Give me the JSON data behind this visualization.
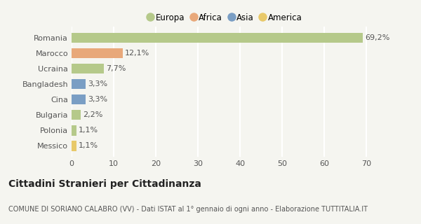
{
  "categories": [
    "Romania",
    "Marocco",
    "Ucraina",
    "Bangladesh",
    "Cina",
    "Bulgaria",
    "Polonia",
    "Messico"
  ],
  "values": [
    69.2,
    12.1,
    7.7,
    3.3,
    3.3,
    2.2,
    1.1,
    1.1
  ],
  "labels": [
    "69,2%",
    "12,1%",
    "7,7%",
    "3,3%",
    "3,3%",
    "2,2%",
    "1,1%",
    "1,1%"
  ],
  "colors": [
    "#b5c98a",
    "#e8a87a",
    "#b5c98a",
    "#7a9ec4",
    "#7a9ec4",
    "#b5c98a",
    "#b5c98a",
    "#e8c96a"
  ],
  "legend_items": [
    {
      "label": "Europa",
      "color": "#b5c98a"
    },
    {
      "label": "Africa",
      "color": "#e8a87a"
    },
    {
      "label": "Asia",
      "color": "#7a9ec4"
    },
    {
      "label": "America",
      "color": "#e8c96a"
    }
  ],
  "xlim": [
    0,
    73
  ],
  "xticks": [
    0,
    10,
    20,
    30,
    40,
    50,
    60,
    70
  ],
  "title": "Cittadini Stranieri per Cittadinanza",
  "subtitle": "COMUNE DI SORIANO CALABRO (VV) - Dati ISTAT al 1° gennaio di ogni anno - Elaborazione TUTTITALIA.IT",
  "background_color": "#f5f5f0",
  "grid_color": "#ffffff",
  "bar_height": 0.65,
  "title_fontsize": 10,
  "subtitle_fontsize": 7,
  "tick_fontsize": 8,
  "label_fontsize": 8,
  "legend_fontsize": 8.5
}
